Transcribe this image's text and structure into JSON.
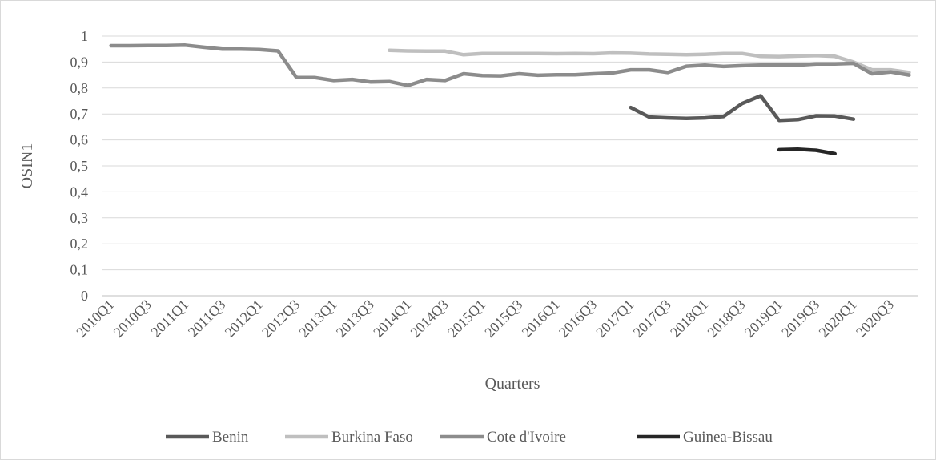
{
  "chart_data": {
    "type": "line",
    "title": "",
    "xlabel": "Quarters",
    "ylabel": "OSIN1",
    "ylim": [
      0,
      1
    ],
    "yticks": [
      "0",
      "0,1",
      "0,2",
      "0,3",
      "0,4",
      "0,5",
      "0,6",
      "0,7",
      "0,8",
      "0,9",
      "1"
    ],
    "x_labels_shown": [
      "2010Q1",
      "2010Q3",
      "2011Q1",
      "2011Q3",
      "2012Q1",
      "2012Q3",
      "2013Q1",
      "2013Q3",
      "2014Q1",
      "2014Q3",
      "2015Q1",
      "2015Q3",
      "2016Q1",
      "2016Q3",
      "2017Q1",
      "2017Q3",
      "2018Q1",
      "2018Q3",
      "2019Q1",
      "2019Q3",
      "2020Q1",
      "2020Q3"
    ],
    "categories": [
      "2010Q1",
      "2010Q2",
      "2010Q3",
      "2010Q4",
      "2011Q1",
      "2011Q2",
      "2011Q3",
      "2011Q4",
      "2012Q1",
      "2012Q2",
      "2012Q3",
      "2012Q4",
      "2013Q1",
      "2013Q2",
      "2013Q3",
      "2013Q4",
      "2014Q1",
      "2014Q2",
      "2014Q3",
      "2014Q4",
      "2015Q1",
      "2015Q2",
      "2015Q3",
      "2015Q4",
      "2016Q1",
      "2016Q2",
      "2016Q3",
      "2016Q4",
      "2017Q1",
      "2017Q2",
      "2017Q3",
      "2017Q4",
      "2018Q1",
      "2018Q2",
      "2018Q3",
      "2018Q4",
      "2019Q1",
      "2019Q2",
      "2019Q3",
      "2019Q4",
      "2020Q1",
      "2020Q2",
      "2020Q3",
      "2020Q4"
    ],
    "grid": true,
    "legend_position": "bottom",
    "series": [
      {
        "name": "Benin",
        "color": "#595959",
        "values": [
          null,
          null,
          null,
          null,
          null,
          null,
          null,
          null,
          null,
          null,
          null,
          null,
          null,
          null,
          null,
          null,
          null,
          null,
          null,
          null,
          null,
          null,
          null,
          null,
          null,
          null,
          null,
          null,
          0.725,
          0.688,
          0.685,
          0.683,
          0.685,
          0.69,
          0.74,
          0.77,
          0.675,
          0.678,
          0.693,
          0.692,
          0.68,
          null,
          null,
          null
        ]
      },
      {
        "name": "Burkina Faso",
        "color": "#bfbfbf",
        "values": [
          null,
          null,
          null,
          null,
          null,
          null,
          null,
          null,
          null,
          null,
          null,
          null,
          null,
          null,
          null,
          0.945,
          0.943,
          0.942,
          0.942,
          0.928,
          0.933,
          0.933,
          0.933,
          0.933,
          0.932,
          0.933,
          0.932,
          0.935,
          0.934,
          0.931,
          0.93,
          0.928,
          0.93,
          0.933,
          0.933,
          0.922,
          0.921,
          0.923,
          0.925,
          0.922,
          0.9,
          0.87,
          0.87,
          0.86
        ]
      },
      {
        "name": "Cote d'Ivoire",
        "color": "#8c8c8c",
        "values": [
          0.963,
          0.963,
          0.964,
          0.964,
          0.965,
          0.957,
          0.95,
          0.95,
          0.948,
          0.943,
          0.84,
          0.84,
          0.829,
          0.833,
          0.823,
          0.825,
          0.81,
          0.833,
          0.829,
          0.855,
          0.848,
          0.847,
          0.855,
          0.849,
          0.851,
          0.851,
          0.855,
          0.858,
          0.87,
          0.87,
          0.86,
          0.884,
          0.888,
          0.883,
          0.886,
          0.888,
          0.888,
          0.888,
          0.893,
          0.893,
          0.895,
          0.855,
          0.862,
          0.85
        ]
      },
      {
        "name": "Guinea-Bissau",
        "color": "#262626",
        "values": [
          null,
          null,
          null,
          null,
          null,
          null,
          null,
          null,
          null,
          null,
          null,
          null,
          null,
          null,
          null,
          null,
          null,
          null,
          null,
          null,
          null,
          null,
          null,
          null,
          null,
          null,
          null,
          null,
          null,
          null,
          null,
          null,
          null,
          null,
          null,
          null,
          0.562,
          0.564,
          0.56,
          0.547,
          null,
          null,
          null,
          null
        ]
      }
    ]
  }
}
